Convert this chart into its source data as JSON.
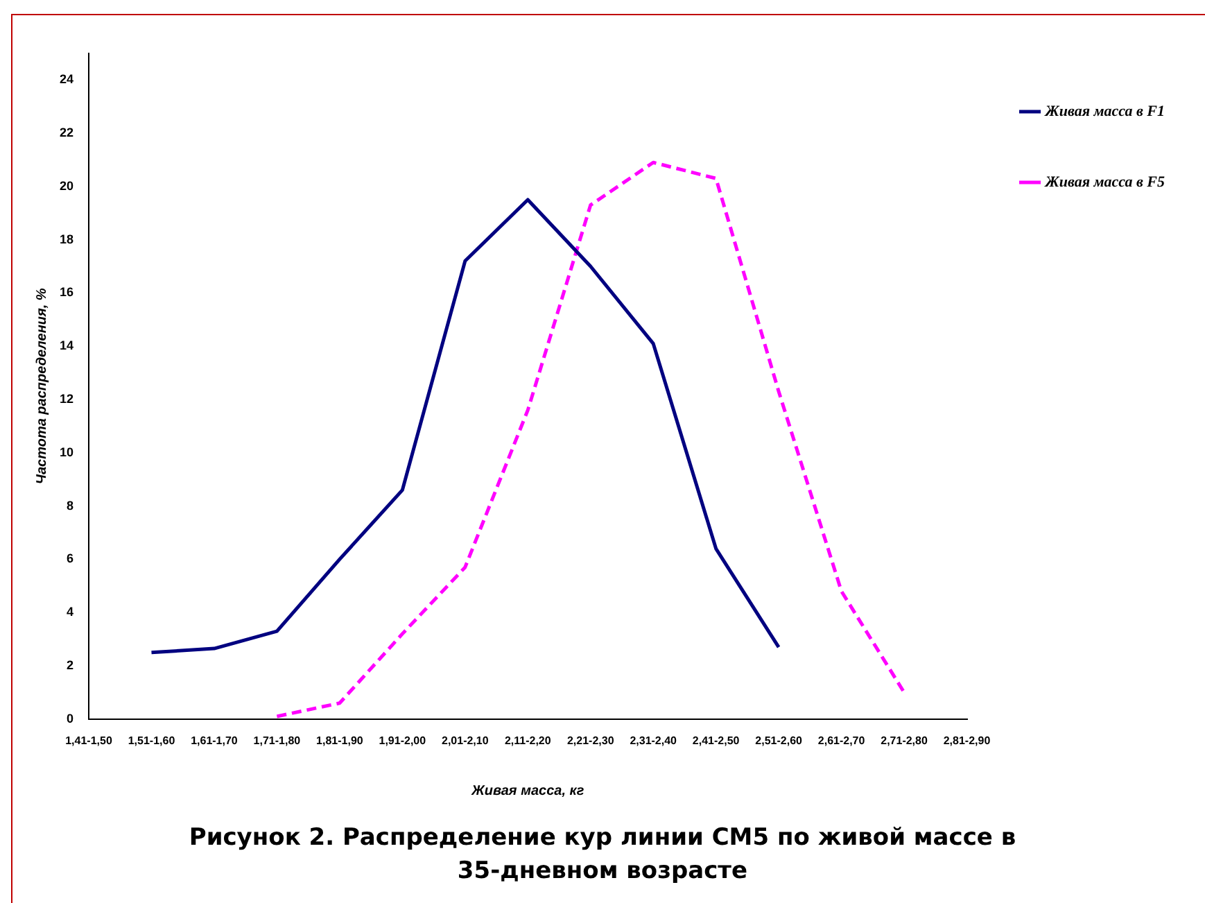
{
  "chart_data": {
    "type": "line",
    "title": "Рисунок 2. Распределение кур линии СМ5 по живой массе в 35-дневном возрасте",
    "xlabel": "Живая масса, кг",
    "ylabel": "Частота распределения, %",
    "categories": [
      "1,41-1,50",
      "1,51-1,60",
      "1,61-1,70",
      "1,71-1,80",
      "1,81-1,90",
      "1,91-2,00",
      "2,01-2,10",
      "2,11-2,20",
      "2,21-2,30",
      "2,31-2,40",
      "2,41-2,50",
      "2,51-2,60",
      "2,61-2,70",
      "2,71-2,80",
      "2,81-2,90"
    ],
    "series": [
      {
        "name": "Живая масса в F1",
        "color": "#000080",
        "line_style": "solid",
        "values": [
          null,
          2.5,
          2.65,
          3.3,
          6.0,
          8.6,
          17.2,
          19.5,
          17.0,
          14.1,
          6.4,
          2.7,
          null,
          null,
          null
        ]
      },
      {
        "name": "Живая масса в F5",
        "color": "#ff00ff",
        "line_style": "dashed",
        "values": [
          null,
          null,
          null,
          0.1,
          0.6,
          3.2,
          5.7,
          11.6,
          19.3,
          20.9,
          20.3,
          12.3,
          4.8,
          1.0,
          null
        ]
      }
    ],
    "ylim": [
      0,
      25
    ],
    "yticks": [
      0,
      2,
      4,
      6,
      8,
      10,
      12,
      14,
      16,
      18,
      20,
      22,
      24
    ],
    "grid": false,
    "legend": "top right",
    "marker": "none"
  }
}
